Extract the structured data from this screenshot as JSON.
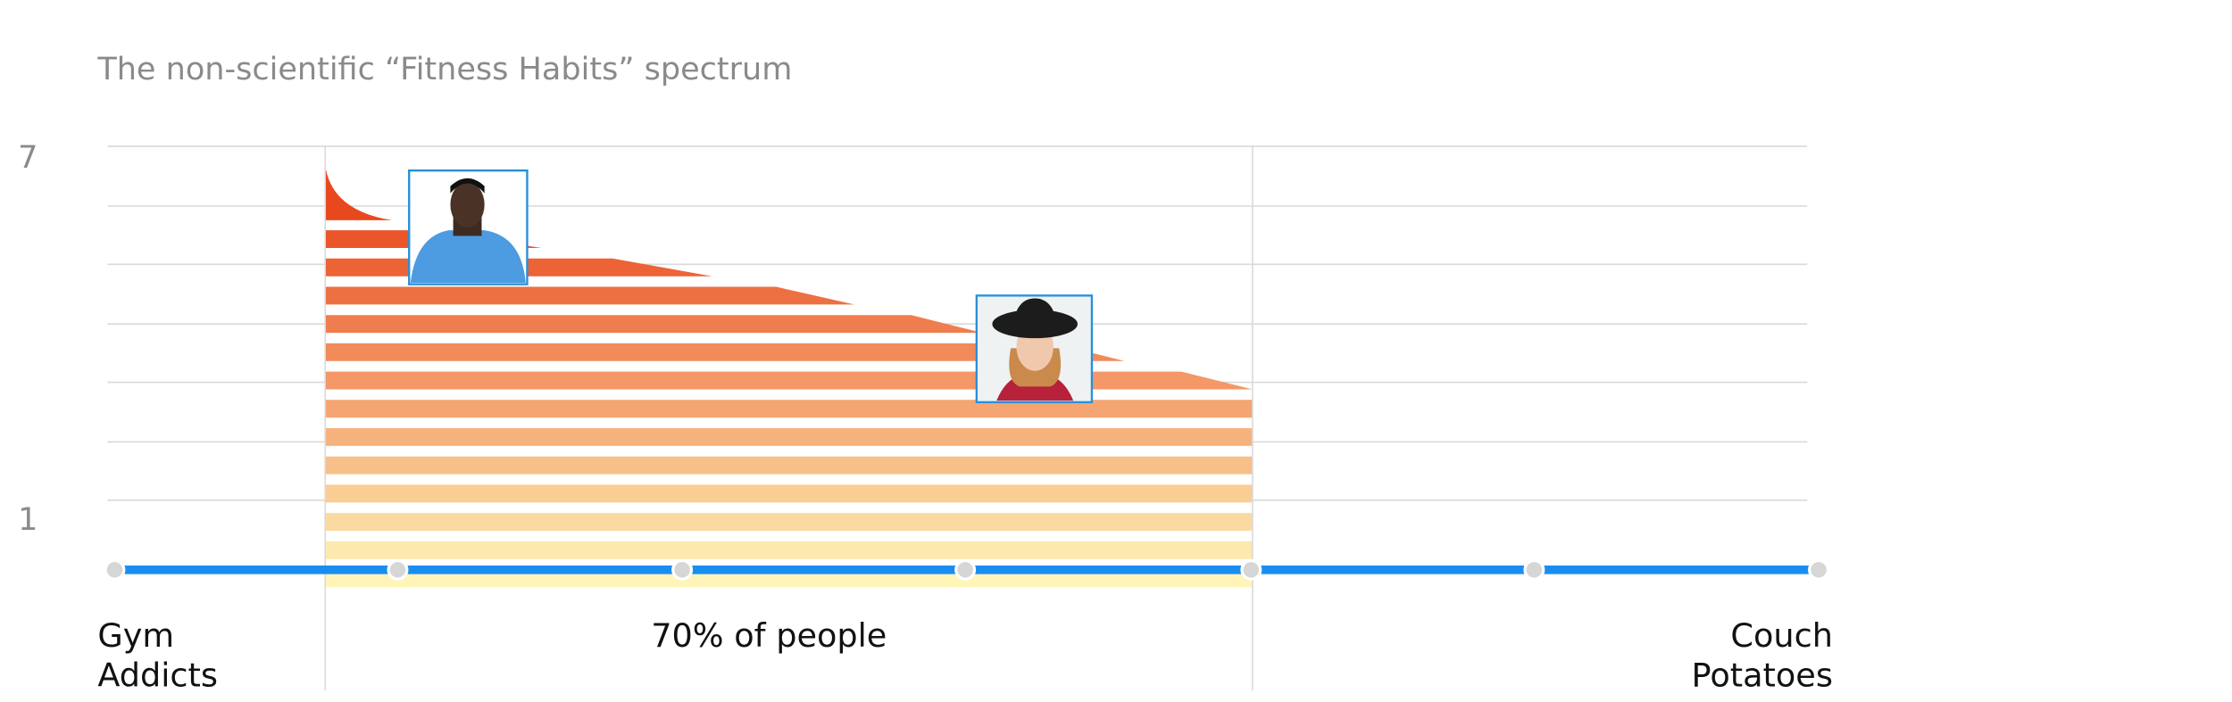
{
  "title": "The non-scientific “Fitness Habits” spectrum",
  "y_labels": [
    "7",
    "1"
  ],
  "left_label": [
    "Gym",
    "Addicts"
  ],
  "middle_label": "70% of people",
  "right_label": [
    "Couch",
    "Potatoes"
  ]
}
